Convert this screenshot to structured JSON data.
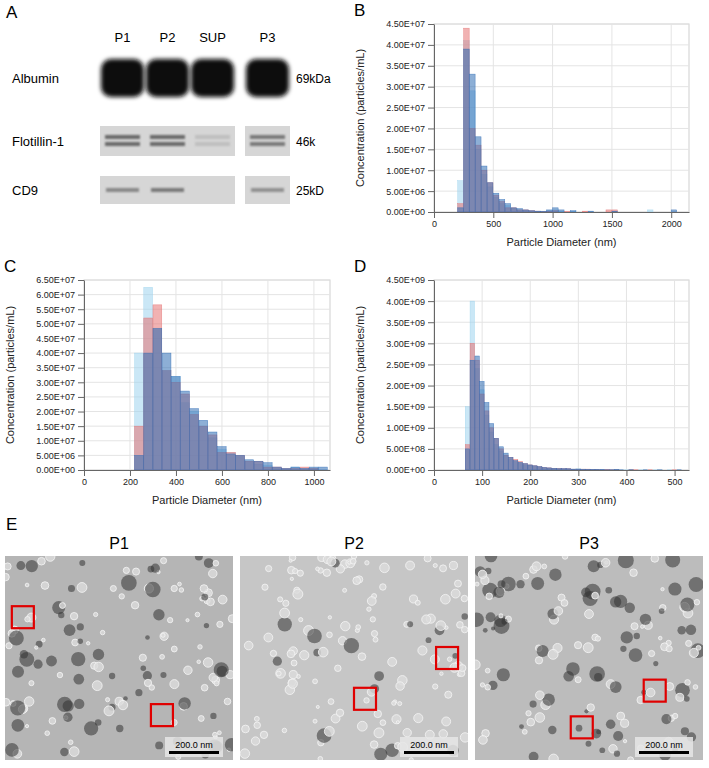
{
  "blot": {
    "panel": "A",
    "lanes": [
      "P1",
      "P2",
      "SUP",
      "P3"
    ],
    "rows": [
      {
        "protein": "Albumin",
        "size": "69kDa",
        "intensity": [
          1,
          1,
          1,
          1
        ]
      },
      {
        "protein": "Flotillin-1",
        "size": "46k",
        "intensity": [
          0.7,
          0.7,
          0.15,
          0.6
        ]
      },
      {
        "protein": "CD9",
        "size": "25kD",
        "intensity": [
          0.5,
          0.6,
          0,
          0.45
        ]
      }
    ]
  },
  "chart_data": [
    {
      "type": "histogram",
      "panel": "B",
      "xlabel": "Particle Diameter (nm)",
      "ylabel": "Concentration (particles/mL)",
      "grid": true,
      "xlim": [
        0,
        2150
      ],
      "xticks": [
        0,
        500,
        1000,
        1500,
        2000
      ],
      "ylim": [
        0,
        45000000.0
      ],
      "yticks": [
        {
          "value": 0,
          "label": "0.00E+00"
        },
        {
          "value": 5000000.0,
          "label": "5.00E+06"
        },
        {
          "value": 10000000.0,
          "label": "1.00E+07"
        },
        {
          "value": 15000000.0,
          "label": "1.50E+07"
        },
        {
          "value": 20000000.0,
          "label": "2.00E+07"
        },
        {
          "value": 25000000.0,
          "label": "2.50E+07"
        },
        {
          "value": 30000000.0,
          "label": "3.00E+07"
        },
        {
          "value": 35000000.0,
          "label": "3.50E+07"
        },
        {
          "value": 40000000.0,
          "label": "4.00E+07"
        },
        {
          "value": 45000000.0,
          "label": "4.50E+07"
        }
      ],
      "bins": [
        200,
        250,
        300,
        350,
        400,
        450,
        500,
        550,
        600,
        650,
        700,
        750,
        800,
        850,
        900,
        950,
        1000,
        1050,
        1100,
        1150,
        1200,
        1250,
        1300,
        1350,
        1400,
        1450,
        1500,
        1550,
        1600,
        1650,
        1700,
        1750,
        1800,
        1850,
        1900,
        1950,
        2000,
        2050,
        2100
      ],
      "series": [
        {
          "color": "#9fd3ee",
          "values": [
            7500000.0,
            41000000.0,
            29000000.0,
            15000000.0,
            9000000.0,
            6000000.0,
            3500000.0,
            2000000.0,
            1500000.0,
            800000.0,
            500000.0,
            300000.0,
            200000.0,
            100000.0,
            200000.0,
            300000.0,
            500000.0,
            100000.0,
            0,
            200000.0,
            0,
            0,
            0,
            0,
            0,
            0,
            0,
            0,
            0,
            0,
            0,
            0,
            500000.0,
            0,
            0,
            0,
            0,
            0
          ]
        },
        {
          "color": "#e57373",
          "values": [
            2000000.0,
            44000000.0,
            20000000.0,
            16000000.0,
            10000000.0,
            7000000.0,
            4000000.0,
            2500000.0,
            1000000.0,
            1000000.0,
            500000.0,
            500000.0,
            300000.0,
            200000.0,
            100000.0,
            200000.0,
            300000.0,
            0,
            100000.0,
            0,
            0,
            200000.0,
            0,
            0,
            0,
            500000.0,
            500000.0,
            0,
            0,
            0,
            0,
            0,
            0,
            0,
            0,
            0,
            0,
            0
          ]
        },
        {
          "color": "#2f6db5",
          "values": [
            1000000.0,
            39000000.0,
            33000000.0,
            18000000.0,
            11000000.0,
            7000000.0,
            4500000.0,
            3000000.0,
            2000000.0,
            1000000.0,
            800000.0,
            500000.0,
            300000.0,
            200000.0,
            100000.0,
            500000.0,
            1000000.0,
            500000.0,
            0,
            300000.0,
            0,
            0,
            200000.0,
            0,
            0,
            0,
            200000.0,
            0,
            0,
            0,
            0,
            0,
            0,
            0,
            0,
            0,
            500000.0,
            0
          ]
        }
      ]
    },
    {
      "type": "histogram",
      "panel": "C",
      "xlabel": "Particle Diameter (nm)",
      "ylabel": "Concentration (particles/mL)",
      "grid": true,
      "xlim": [
        0,
        1070
      ],
      "xticks": [
        0,
        200,
        400,
        600,
        800,
        1000
      ],
      "ylim": [
        0,
        65000000.0
      ],
      "yticks": [
        {
          "value": 0,
          "label": "0.00E+00"
        },
        {
          "value": 5000000.0,
          "label": "5.00E+06"
        },
        {
          "value": 10000000.0,
          "label": "1.00E+07"
        },
        {
          "value": 15000000.0,
          "label": "1.50E+07"
        },
        {
          "value": 20000000.0,
          "label": "2.00E+07"
        },
        {
          "value": 25000000.0,
          "label": "2.50E+07"
        },
        {
          "value": 30000000.0,
          "label": "3.00E+07"
        },
        {
          "value": 35000000.0,
          "label": "3.50E+07"
        },
        {
          "value": 40000000.0,
          "label": "4.00E+07"
        },
        {
          "value": 45000000.0,
          "label": "4.50E+07"
        },
        {
          "value": 50000000.0,
          "label": "5.00E+07"
        },
        {
          "value": 55000000.0,
          "label": "5.50E+07"
        },
        {
          "value": 60000000.0,
          "label": "6.00E+07"
        },
        {
          "value": 65000000.0,
          "label": "6.50E+07"
        }
      ],
      "bins": [
        220,
        260,
        300,
        340,
        380,
        420,
        460,
        500,
        540,
        580,
        620,
        660,
        700,
        740,
        780,
        820,
        860,
        900,
        940,
        980,
        1020,
        1060
      ],
      "series": [
        {
          "color": "#9fd3ee",
          "values": [
            40000000.0,
            62500000.0,
            48000000.0,
            34000000.0,
            32000000.0,
            23000000.0,
            20000000.0,
            15000000.0,
            11000000.0,
            7000000.0,
            6000000.0,
            5000000.0,
            3000000.0,
            2000000.0,
            1500000.0,
            500000.0,
            500000.0,
            1000000.0,
            500000.0,
            500000.0,
            0
          ]
        },
        {
          "color": "#e57373",
          "values": [
            15000000.0,
            52000000.0,
            56500000.0,
            34000000.0,
            30000000.0,
            26000000.0,
            19000000.0,
            15000000.0,
            12000000.0,
            6000000.0,
            6000000.0,
            5000000.0,
            3000000.0,
            3000000.0,
            1000000.0,
            1000000.0,
            500000.0,
            500000.0,
            1000000.0,
            500000.0,
            0
          ]
        },
        {
          "color": "#2f6db5",
          "values": [
            5000000.0,
            40000000.0,
            48500000.0,
            40000000.0,
            32000000.0,
            27000000.0,
            21000000.0,
            17000000.0,
            13000000.0,
            8000000.0,
            5500000.0,
            5000000.0,
            3500000.0,
            3000000.0,
            2500000.0,
            1000000.0,
            500000.0,
            1000000.0,
            500000.0,
            1000000.0,
            1000000.0
          ]
        }
      ]
    },
    {
      "type": "histogram",
      "panel": "D",
      "xlabel": "Particle Diameter (nm)",
      "ylabel": "Concentration (particles/mL)",
      "grid": true,
      "xlim": [
        0,
        530
      ],
      "xticks": [
        0,
        100,
        200,
        300,
        400,
        500
      ],
      "ylim": [
        0,
        4500000000.0
      ],
      "yticks": [
        {
          "value": 0,
          "label": "0.00E+00"
        },
        {
          "value": 500000000.0,
          "label": "5.00E+08"
        },
        {
          "value": 1000000000.0,
          "label": "1.00E+09"
        },
        {
          "value": 1500000000.0,
          "label": "1.50E+09"
        },
        {
          "value": 2000000000.0,
          "label": "2.00E+09"
        },
        {
          "value": 2500000000.0,
          "label": "2.50E+09"
        },
        {
          "value": 3000000000.0,
          "label": "3.00E+09"
        },
        {
          "value": 3500000000.0,
          "label": "3.50E+09"
        },
        {
          "value": 4000000000.0,
          "label": "4.00E+09"
        },
        {
          "value": 4500000000.0,
          "label": "4.50E+09"
        }
      ],
      "bins": [
        65,
        75,
        85,
        95,
        105,
        115,
        125,
        135,
        145,
        155,
        165,
        175,
        185,
        195,
        205,
        215,
        225,
        235,
        245,
        255,
        265,
        275,
        285,
        295,
        305,
        315,
        325,
        335,
        345,
        355,
        365,
        375,
        385,
        395,
        405,
        415,
        425,
        435,
        445,
        455,
        465,
        475,
        485,
        495,
        505,
        515,
        525
      ],
      "series": [
        {
          "color": "#9fd3ee",
          "values": [
            1500000000.0,
            4000000000.0,
            2400000000.0,
            1900000000.0,
            1300000000.0,
            900000000.0,
            600000000.0,
            450000000.0,
            350000000.0,
            250000000.0,
            200000000.0,
            150000000.0,
            120000000.0,
            100000000.0,
            80000000.0,
            60000000.0,
            50000000.0,
            40000000.0,
            40000000.0,
            30000000.0,
            30000000.0,
            20000000.0,
            20000000.0,
            30000000.0,
            20000000.0,
            10000000.0,
            10000000.0,
            10000000.0,
            10000000.0,
            5000000.0,
            10000000.0,
            5000000.0,
            0,
            5000000.0,
            10000000.0,
            0,
            5000000.0,
            0,
            0,
            5000000.0,
            0,
            0,
            5000000.0,
            0,
            0,
            0
          ]
        },
        {
          "color": "#e57373",
          "values": [
            600000000.0,
            3000000000.0,
            2600000000.0,
            1800000000.0,
            1400000000.0,
            1000000000.0,
            750000000.0,
            500000000.0,
            350000000.0,
            300000000.0,
            250000000.0,
            200000000.0,
            150000000.0,
            120000000.0,
            100000000.0,
            80000000.0,
            60000000.0,
            50000000.0,
            40000000.0,
            40000000.0,
            30000000.0,
            30000000.0,
            20000000.0,
            20000000.0,
            20000000.0,
            20000000.0,
            10000000.0,
            10000000.0,
            5000000.0,
            10000000.0,
            5000000.0,
            5000000.0,
            0,
            0,
            5000000.0,
            5000000.0,
            0,
            0,
            5000000.0,
            0,
            0,
            0,
            0,
            5000000.0,
            0,
            0
          ]
        },
        {
          "color": "#2f6db5",
          "values": [
            500000000.0,
            2600000000.0,
            2700000000.0,
            2100000000.0,
            1600000000.0,
            1100000000.0,
            750000000.0,
            550000000.0,
            400000000.0,
            300000000.0,
            220000000.0,
            180000000.0,
            150000000.0,
            120000000.0,
            100000000.0,
            80000000.0,
            60000000.0,
            50000000.0,
            40000000.0,
            30000000.0,
            30000000.0,
            30000000.0,
            20000000.0,
            20000000.0,
            10000000.0,
            10000000.0,
            10000000.0,
            10000000.0,
            10000000.0,
            5000000.0,
            5000000.0,
            10000000.0,
            5000000.0,
            0,
            5000000.0,
            0,
            0,
            5000000.0,
            0,
            0,
            5000000.0,
            0,
            0,
            0,
            5000000.0,
            0
          ]
        }
      ]
    }
  ],
  "micrographs": {
    "panel": "E",
    "images": [
      {
        "title": "P1",
        "scale_bar": "200.0 nm"
      },
      {
        "title": "P2",
        "scale_bar": "200.0 nm"
      },
      {
        "title": "P3",
        "scale_bar": "200.0 nm"
      }
    ]
  }
}
